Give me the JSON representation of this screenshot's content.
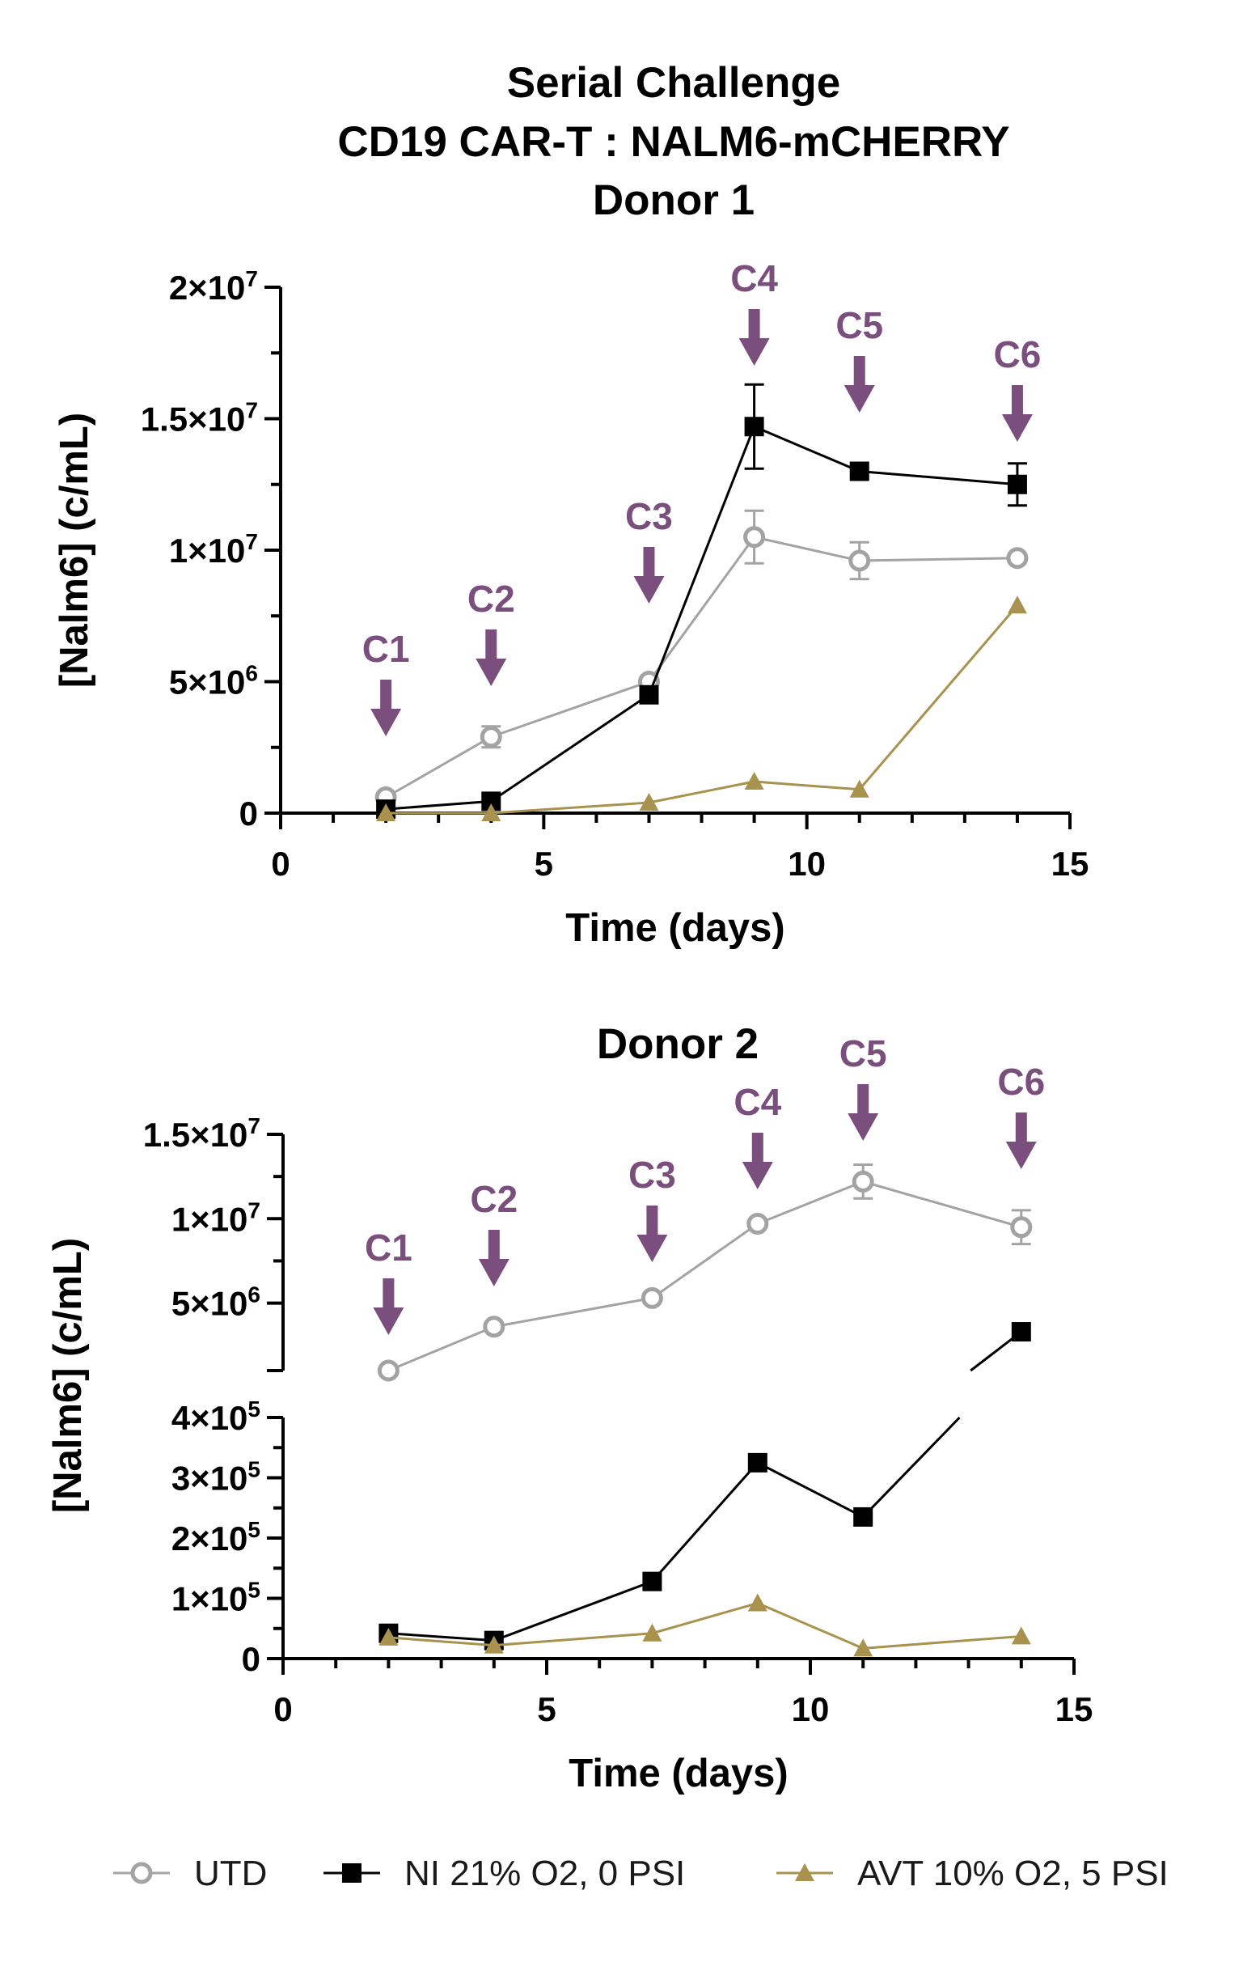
{
  "title_lines": [
    "Serial Challenge",
    "CD19 CAR-T : NALM6-mCHERRY"
  ],
  "colors": {
    "UTD": "#a3a3a3",
    "NI": "#000000",
    "AVT": "#a8924e",
    "arrow": "#7a4f7d"
  },
  "legend": [
    "UTD",
    "NI 21% O2, 0 PSI",
    "AVT 10% O2, 5 PSI"
  ],
  "chart_data": [
    {
      "type": "line",
      "title": "Donor 1",
      "xlabel": "Time (days)",
      "ylabel": "[Nalm6] (c/mL)",
      "xlim": [
        0,
        15
      ],
      "ylim": [
        0,
        20000000
      ],
      "x_ticks": [
        "0",
        "5",
        "10",
        "15"
      ],
      "y_ticks": [
        {
          "value": 0,
          "base": "0",
          "exp": ""
        },
        {
          "value": 5000000,
          "base": "5×10",
          "exp": "6"
        },
        {
          "value": 10000000,
          "base": "1×10",
          "exp": "7"
        },
        {
          "value": 15000000,
          "base": "1.5×10",
          "exp": "7"
        },
        {
          "value": 20000000,
          "base": "2×10",
          "exp": "7"
        }
      ],
      "challenges": [
        {
          "label": "C1",
          "x": 2
        },
        {
          "label": "C2",
          "x": 4
        },
        {
          "label": "C3",
          "x": 7
        },
        {
          "label": "C4",
          "x": 9
        },
        {
          "label": "C5",
          "x": 11
        },
        {
          "label": "C6",
          "x": 14
        }
      ],
      "series": [
        {
          "name": "UTD",
          "marker": "circle",
          "x": [
            2,
            4,
            7,
            9,
            11,
            14
          ],
          "y": [
            600000,
            2900000,
            5000000,
            10500000,
            9600000,
            9700000
          ],
          "err": [
            0,
            400000,
            0,
            1000000,
            700000,
            0
          ]
        },
        {
          "name": "NI 21% O2, 0 PSI",
          "marker": "square",
          "x": [
            2,
            4,
            7,
            9,
            11,
            14
          ],
          "y": [
            150000,
            450000,
            4500000,
            14700000,
            13000000,
            12500000
          ],
          "err": [
            0,
            0,
            0,
            1600000,
            0,
            800000
          ]
        },
        {
          "name": "AVT 10% O2, 5 PSI",
          "marker": "triangle",
          "x": [
            2,
            4,
            7,
            9,
            11,
            14
          ],
          "y": [
            0,
            0,
            400000,
            1200000,
            900000,
            7900000
          ],
          "err": [
            0,
            0,
            0,
            0,
            0,
            0
          ]
        }
      ]
    },
    {
      "type": "line",
      "title": "Donor 2",
      "xlabel": "Time (days)",
      "ylabel": "[Nalm6] (c/mL)",
      "xlim": [
        0,
        15
      ],
      "broken_y_axis": true,
      "lower_ylim": [
        0,
        400000
      ],
      "upper_ylim": [
        1000000,
        15000000
      ],
      "x_ticks": [
        "0",
        "5",
        "10",
        "15"
      ],
      "lower_y_ticks": [
        {
          "value": 0,
          "base": "0",
          "exp": ""
        },
        {
          "value": 100000,
          "base": "1×10",
          "exp": "5"
        },
        {
          "value": 200000,
          "base": "2×10",
          "exp": "5"
        },
        {
          "value": 300000,
          "base": "3×10",
          "exp": "5"
        },
        {
          "value": 400000,
          "base": "4×10",
          "exp": "5"
        }
      ],
      "upper_y_ticks": [
        {
          "value": 5000000,
          "base": "5×10",
          "exp": "6"
        },
        {
          "value": 10000000,
          "base": "1×10",
          "exp": "7"
        },
        {
          "value": 15000000,
          "base": "1.5×10",
          "exp": "7"
        }
      ],
      "challenges": [
        {
          "label": "C1",
          "x": 2
        },
        {
          "label": "C2",
          "x": 4
        },
        {
          "label": "C3",
          "x": 7
        },
        {
          "label": "C4",
          "x": 9
        },
        {
          "label": "C5",
          "x": 11
        },
        {
          "label": "C6",
          "x": 14
        }
      ],
      "series": [
        {
          "name": "UTD",
          "marker": "circle",
          "x": [
            2,
            4,
            7,
            9,
            11,
            14
          ],
          "y": [
            1000000,
            3600000,
            5300000,
            9700000,
            12200000,
            9500000
          ],
          "err": [
            0,
            0,
            0,
            0,
            1000000,
            1000000
          ]
        },
        {
          "name": "NI 21% O2, 0 PSI",
          "marker": "square",
          "x": [
            2,
            4,
            7,
            9,
            11,
            14
          ],
          "y": [
            42000,
            30000,
            128000,
            325000,
            235000,
            3300000
          ],
          "err": [
            0,
            0,
            0,
            0,
            0,
            0
          ]
        },
        {
          "name": "AVT 10% O2, 5 PSI",
          "marker": "triangle",
          "x": [
            2,
            4,
            7,
            9,
            11,
            14
          ],
          "y": [
            35000,
            22000,
            42000,
            92000,
            17000,
            37000
          ],
          "err": [
            0,
            0,
            0,
            0,
            0,
            0
          ]
        }
      ]
    }
  ]
}
